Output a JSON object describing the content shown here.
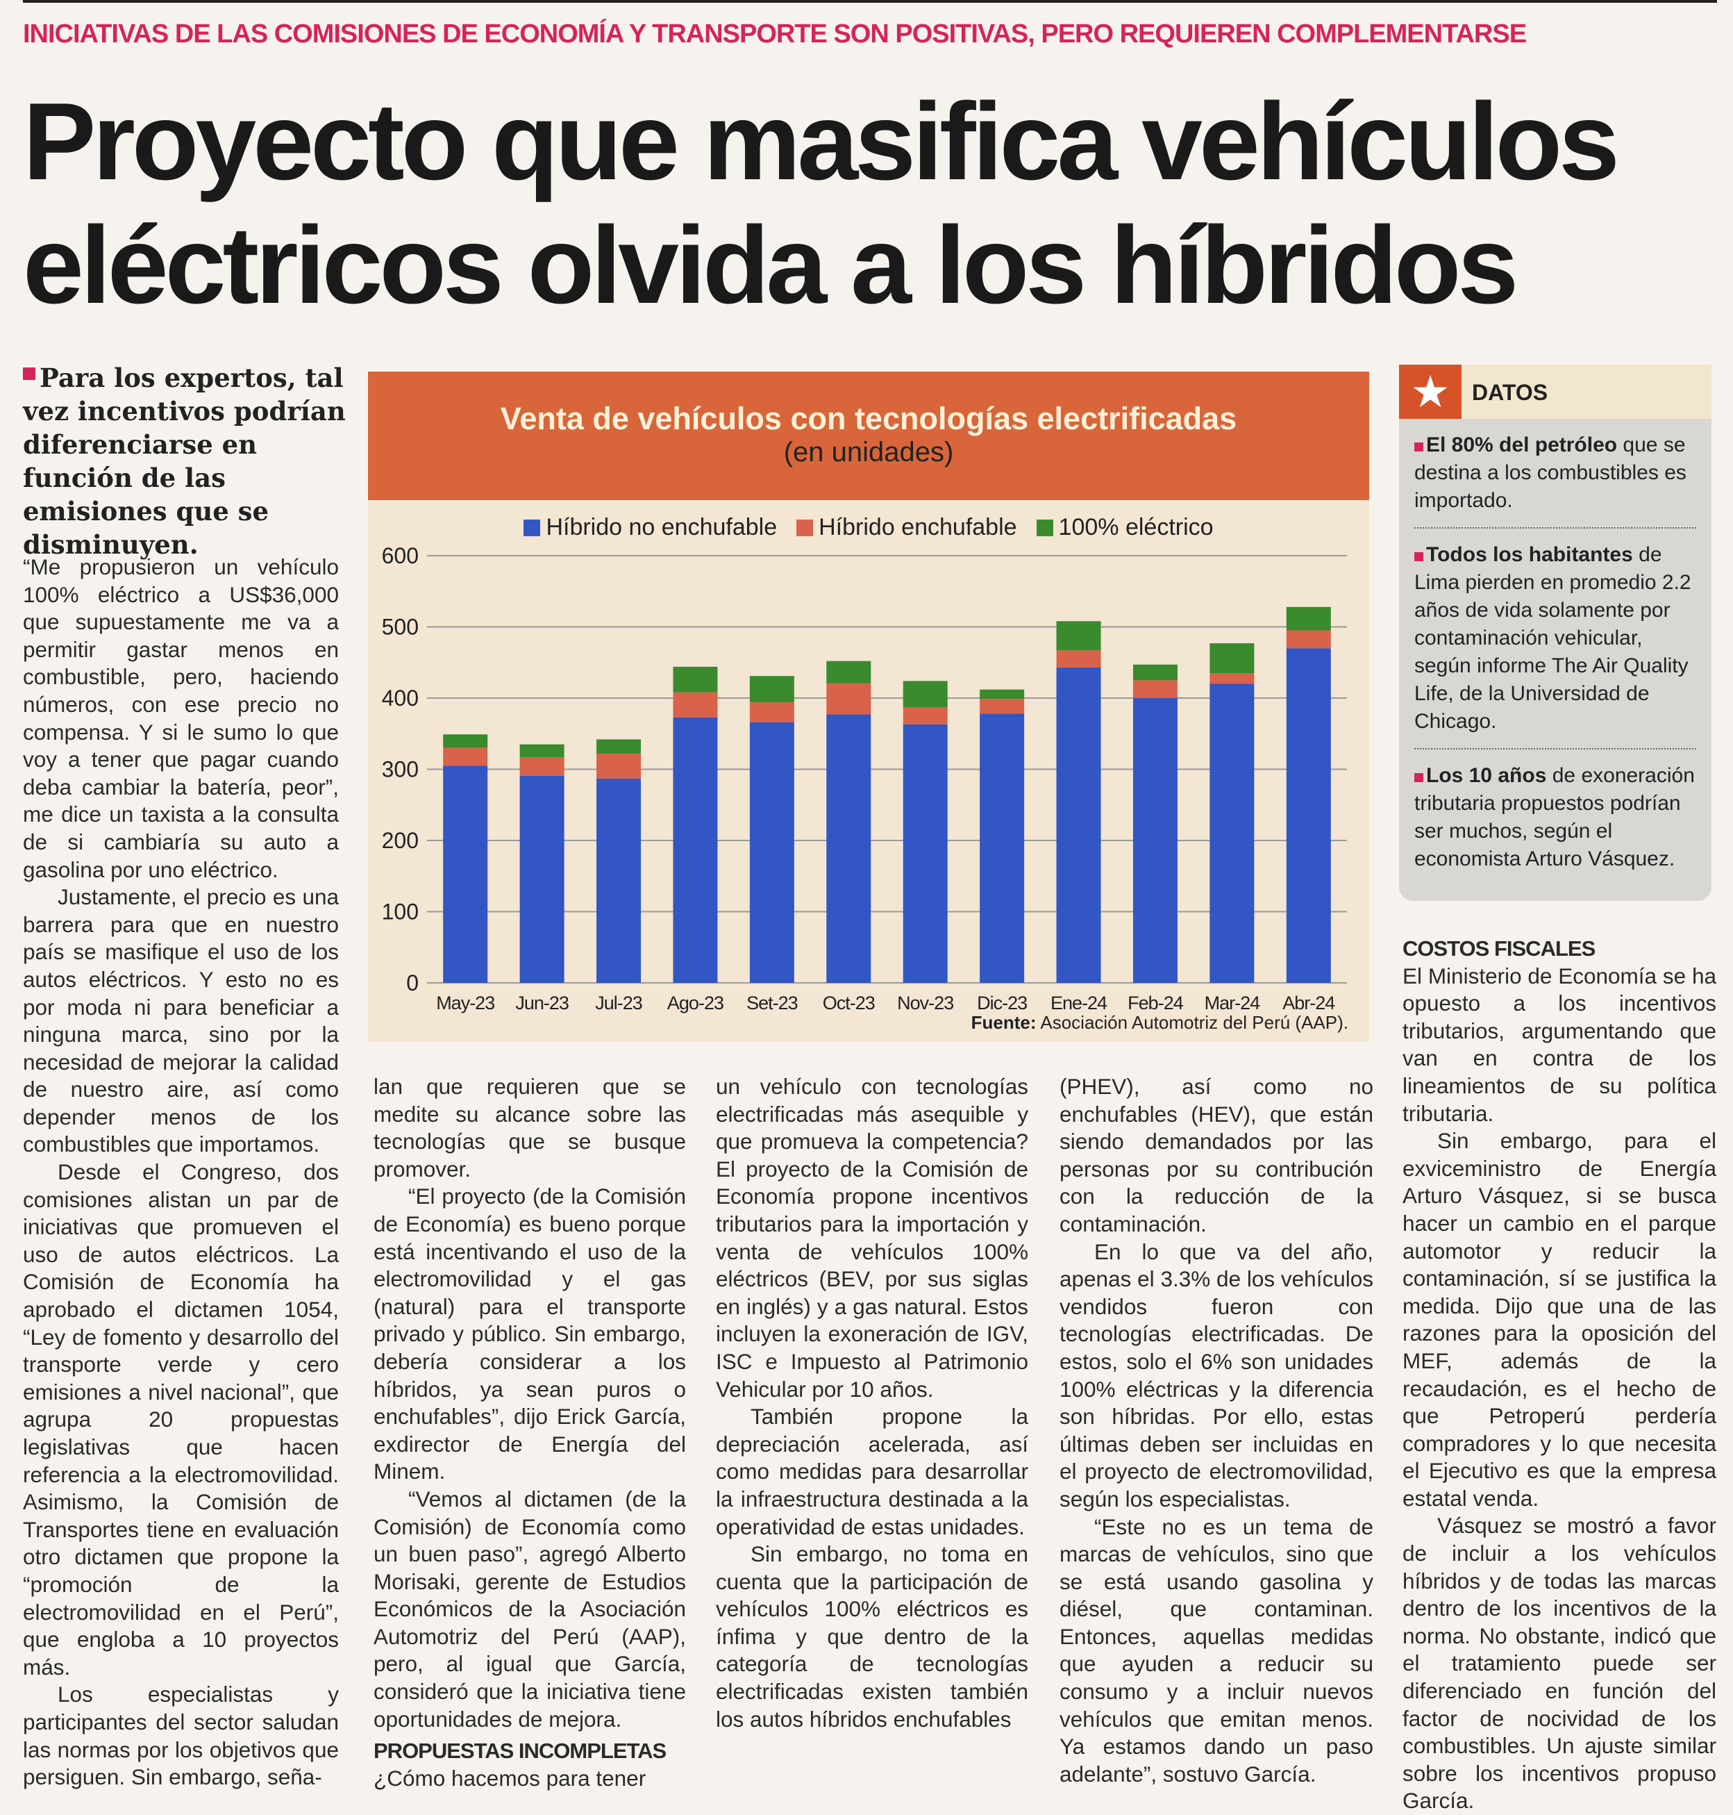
{
  "kicker": "INICIATIVAS DE LAS COMISIONES DE ECONOMÍA Y TRANSPORTE SON POSITIVAS, PERO REQUIEREN COMPLEMENTARSE",
  "headline": "Proyecto que masifica vehículos eléctricos olvida a los híbridos",
  "lead": "Para los expertos, tal vez incentivos podrían diferenciarse en función de las emisiones que se disminuyen.",
  "col1": [
    "“Me propusieron un vehículo 100% eléctrico a US$36,000 que supuestamente me va a permitir gastar menos en combustible, pero, haciendo números, con ese precio no compensa. Y si le sumo lo que voy a tener que pagar cuando deba cambiar la batería, peor”, me dice un taxista a la consulta de si cambiaría su auto a gasolina por uno eléctrico.",
    "Justamente, el precio es una barrera para que en nuestro país se masifique el uso de los autos eléctricos. Y esto no es por moda ni para beneficiar a ninguna marca, sino por la necesidad de mejorar la calidad de nuestro aire, así como depender menos de los combustibles que importamos.",
    "Desde el Congreso, dos comisiones alistan un par de iniciativas que promueven el uso de autos eléctricos. La Comisión de Economía ha aprobado el dictamen 1054, “Ley de fomento y desarrollo del transporte verde y cero emisiones a nivel nacional”, que agrupa 20 propuestas legislativas que hacen referencia a la electromovilidad. Asimismo, la Comisión de Transportes tiene en evaluación otro dictamen que propone la “promoción de la electromovilidad en el Perú”, que engloba a 10 proyectos más.",
    "Los especialistas y participantes del sector saludan las normas por los objetivos que persiguen. Sin embargo, seña-"
  ],
  "col2": [
    "lan que requieren que se medite su alcance sobre las tecnologías que se busque promover.",
    "“El proyecto (de la Comisión de Economía) es bueno porque está incentivando el uso de la electromovilidad y el gas (natural) para el transporte privado y público. Sin embargo, debería considerar a los híbridos, ya sean puros o enchufables”, dijo Erick García, exdirector de Energía del Minem.",
    "“Vemos al dictamen (de la Comisión) de Economía como un buen paso”, agregó Alberto Morisaki, gerente de Estudios Económicos de la Asociación Automotriz del Perú (AAP), pero, al igual que García, consideró que la iniciativa tiene oportunidades de mejora."
  ],
  "col2_heading": "PROPUESTAS INCOMPLETAS",
  "col2_tail": "¿Cómo hacemos para tener",
  "col3": [
    "un vehículo con tecnologías electrificadas más asequible y que promueva la competencia? El proyecto de la Comisión de Economía propone incentivos tributarios para la importación y venta de vehículos 100% eléctricos (BEV, por sus siglas en inglés) y a gas natural. Estos incluyen la exoneración de IGV, ISC e Impuesto al Patrimonio Vehicular por 10 años.",
    "También propone la depreciación acelerada, así como medidas para desarrollar la infraestructura destinada a la operatividad de estas unidades.",
    "Sin embargo, no toma en cuenta que la participación de vehículos 100% eléctricos es ínfima y que dentro de la categoría de tecnologías electrificadas existen también los autos híbridos enchufables"
  ],
  "col4": [
    "(PHEV), así como no enchufables (HEV), que están siendo demandados por las personas por su contribución con la reducción de la contaminación.",
    "En lo que va del año, apenas el 3.3% de los vehículos vendidos fueron con tecnologías electrificadas. De estos, solo el 6% son unidades 100% eléctricas y la diferencia son híbridas. Por ello, estas últimas deben ser incluidas en el proyecto de electromovilidad, según los especialistas.",
    "“Este no es un tema de marcas de vehículos, sino que se está usando gasolina y diésel, que contaminan. Entonces, aquellas medidas que ayuden a reducir su consumo y a incluir nuevos vehículos que emitan menos. Ya estamos dando un paso adelante”, sostuvo García."
  ],
  "col5_heading": "COSTOS FISCALES",
  "col5": [
    "El Ministerio de Economía se ha opuesto a los incentivos tributarios, argumentando que van en contra de los lineamientos de su política tributaria.",
    "Sin embargo, para el exviceministro de Energía Arturo Vásquez, si se busca hacer un cambio en el parque automotor y reducir la contaminación, sí se justifica la medida. Dijo que una de las razones para la oposición del MEF, además de la recaudación, es el hecho de que Petroperú perdería compradores y lo que necesita el Ejecutivo es que la empresa estatal venda.",
    "Vásquez se mostró a favor de incluir a los vehículos híbridos y de todas las marcas dentro de los incentivos de la norma. No obstante, indicó que el tratamiento puede ser diferenciado en función del factor de nocividad de los combustibles. Un ajuste similar sobre los incentivos propuso García."
  ],
  "datos": {
    "title": "DATOS",
    "icon": "star-icon",
    "items": [
      {
        "bold": "El 80% del petróleo",
        "rest": " que se destina a los combustibles es importado."
      },
      {
        "bold": "Todos los habitantes",
        "rest": " de Lima pierden en promedio 2.2 años de vida solamente por contaminación vehicular, según informe The Air Quality Life, de la Universidad de Chicago."
      },
      {
        "bold": "Los 10 años",
        "rest": " de exoneración tributaria propuestos podrían ser muchos, según el economista Arturo Vásquez."
      }
    ]
  },
  "chart_data": {
    "type": "bar",
    "stacked": true,
    "title": "Venta de vehículos con tecnologías electrificadas",
    "subtitle": "(en unidades)",
    "categories": [
      "May-23",
      "Jun-23",
      "Jul-23",
      "Ago-23",
      "Set-23",
      "Oct-23",
      "Nov-23",
      "Dic-23",
      "Ene-24",
      "Feb-24",
      "Mar-24",
      "Abr-24"
    ],
    "series": [
      {
        "name": "Híbrido no enchufable",
        "color": "#3256c4",
        "values": [
          305,
          291,
          287,
          373,
          366,
          377,
          363,
          378,
          443,
          400,
          420,
          470
        ]
      },
      {
        "name": "Híbrido enchufable",
        "color": "#d9624a",
        "values": [
          25,
          26,
          35,
          35,
          28,
          44,
          24,
          21,
          24,
          25,
          15,
          25
        ]
      },
      {
        "name": "100% eléctrico",
        "color": "#3a8a2e",
        "values": [
          19,
          18,
          20,
          36,
          37,
          31,
          37,
          13,
          41,
          22,
          42,
          33
        ]
      }
    ],
    "ylim": [
      0,
      600
    ],
    "yticks": [
      0,
      100,
      200,
      300,
      400,
      500,
      600
    ],
    "grid": true,
    "legend": "top",
    "source_label": "Fuente:",
    "source": "Asociación Automotriz del Perú (AAP)."
  }
}
